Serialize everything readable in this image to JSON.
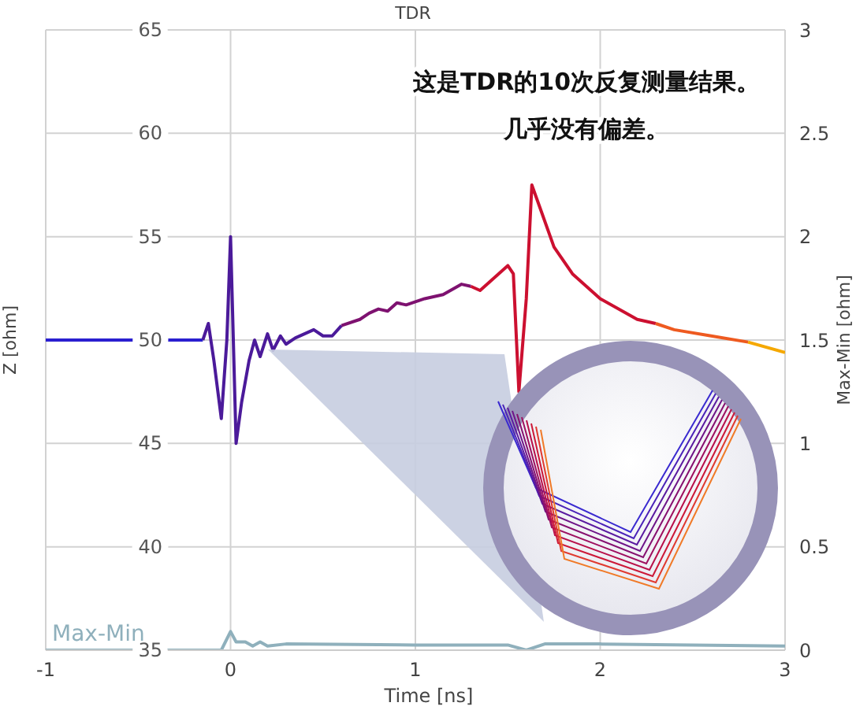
{
  "chart_data": {
    "type": "line",
    "title": "TDR",
    "xlabel": "Time [ns]",
    "ylabel": "Z [ohm]",
    "y2label": "Max-Min [ohm]",
    "annotations": [
      "这是TDR的10次反复测量结果。",
      "几乎没有偏差。"
    ],
    "xlim": [
      -1,
      3
    ],
    "xticks": [
      -1,
      0,
      1,
      2,
      3
    ],
    "ylim": [
      35,
      65
    ],
    "yticks": [
      35,
      40,
      45,
      50,
      55,
      60,
      65
    ],
    "y2lim": [
      0,
      3
    ],
    "y2ticks": [
      0,
      0.5,
      1,
      1.5,
      2,
      2.5,
      3
    ],
    "grid": true,
    "marker": "none",
    "line_style": "solid",
    "series": [
      {
        "color": "#2a1fd0",
        "x": [
          -1,
          -0.15
        ],
        "values": [
          50,
          50
        ]
      },
      {
        "color": "#4b1a9a",
        "x": [
          -0.15,
          -0.12,
          -0.09,
          -0.05,
          -0.02,
          0,
          0.03,
          0.06,
          0.1,
          0.13,
          0.16,
          0.2,
          0.23,
          0.27,
          0.3,
          0.35,
          0.45,
          0.5,
          0.55,
          0.6
        ],
        "values": [
          50,
          50.8,
          49,
          46.2,
          50,
          55,
          45,
          47,
          49,
          50,
          49.2,
          50.3,
          49.5,
          50.2,
          49.8,
          50.1,
          50.5,
          50.2,
          50.2,
          50.7
        ]
      },
      {
        "color": "#7e1270",
        "x": [
          0.6,
          0.7,
          0.75,
          0.8,
          0.85,
          0.9,
          0.95,
          1.05,
          1.15,
          1.25,
          1.3
        ],
        "values": [
          50.7,
          51,
          51.3,
          51.5,
          51.4,
          51.8,
          51.7,
          52,
          52.2,
          52.7,
          52.6
        ]
      },
      {
        "color": "#cc1030",
        "x": [
          1.3,
          1.35,
          1.45,
          1.5,
          1.53,
          1.56,
          1.6,
          1.63,
          1.67,
          1.75,
          1.85,
          2,
          2.2,
          2.3
        ],
        "values": [
          52.6,
          52.4,
          53.2,
          53.6,
          53.2,
          47.5,
          52,
          57.5,
          56.5,
          54.5,
          53.2,
          52,
          51,
          50.8
        ]
      },
      {
        "color": "#ee5a20",
        "x": [
          2.3,
          2.4,
          2.6,
          2.8
        ],
        "values": [
          50.8,
          50.5,
          50.2,
          49.9
        ]
      },
      {
        "color": "#f5a800",
        "x": [
          2.8,
          3
        ],
        "values": [
          49.9,
          49.4
        ]
      },
      {
        "name": "Max-Min",
        "color": "#8fb0bc",
        "axis": "y2",
        "x": [
          -1,
          -0.05,
          0,
          0.03,
          0.08,
          0.12,
          0.16,
          0.2,
          0.3,
          1,
          1.5,
          1.6,
          1.7,
          2,
          3
        ],
        "values": [
          0,
          0,
          0.09,
          0.04,
          0.04,
          0.02,
          0.04,
          0.02,
          0.03,
          0.025,
          0.025,
          0,
          0.03,
          0.03,
          0.02
        ]
      }
    ]
  }
}
